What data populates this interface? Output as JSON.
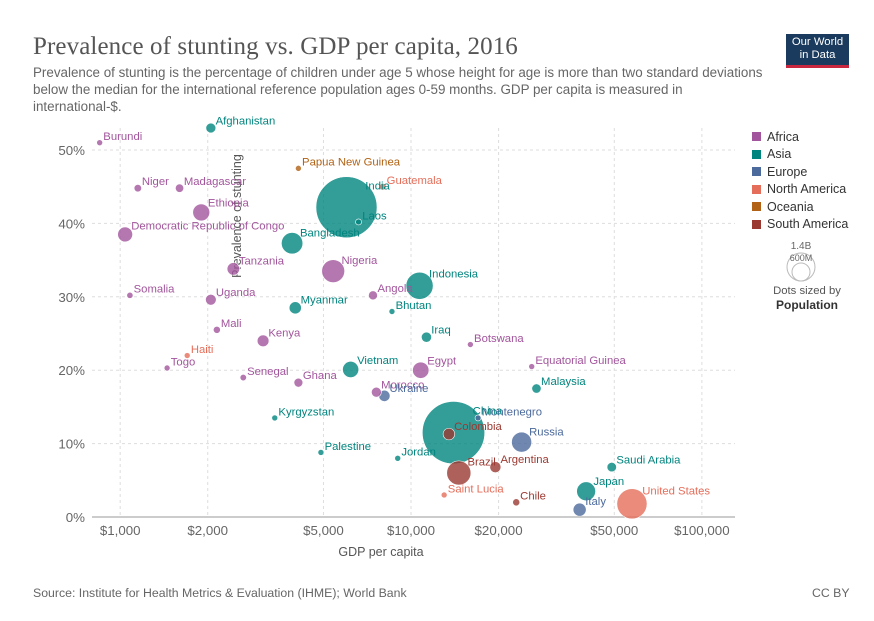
{
  "header": {
    "title": "Prevalence of stunting vs. GDP per capita, 2016",
    "subtitle": "Prevalence of stunting is the percentage of children under age 5 whose height for age is more than two standard deviations below the median for the international reference population ages 0-59 months. GDP per capita is measured in international-$.",
    "logo": "Our World in Data"
  },
  "footer": {
    "source": "Source: Institute for Health Metrics & Evaluation (IHME); World Bank",
    "license": "CC BY"
  },
  "size_legend": {
    "big_label": "1.4B",
    "small_label": "600M",
    "note": "Dots sized by",
    "note_bold": "Population"
  },
  "colors": {
    "Africa": "#a2559c",
    "Asia": "#00847e",
    "Europe": "#4c6a9c",
    "North America": "#e56e5a",
    "Oceania": "#b16214",
    "South America": "#9a3931"
  },
  "chart_data": {
    "type": "scatter",
    "title": "Prevalence of stunting vs. GDP per capita, 2016",
    "xlabel": "GDP per capita",
    "ylabel": "Prevalence of stunting",
    "x_scale": "log",
    "xlim": [
      800,
      130000
    ],
    "ylim": [
      0,
      53
    ],
    "x_ticks": [
      1000,
      2000,
      5000,
      10000,
      20000,
      50000,
      100000
    ],
    "x_tick_labels": [
      "$1,000",
      "$2,000",
      "$5,000",
      "$10,000",
      "$20,000",
      "$50,000",
      "$100,000"
    ],
    "y_ticks": [
      0,
      10,
      20,
      30,
      40,
      50
    ],
    "y_tick_labels": [
      "0%",
      "10%",
      "20%",
      "30%",
      "40%",
      "50%"
    ],
    "grid": true,
    "legend": [
      "Africa",
      "Asia",
      "Europe",
      "North America",
      "Oceania",
      "South America"
    ],
    "legend_position": "right",
    "points": [
      {
        "label": "Burundi",
        "x": 850,
        "y": 51,
        "region": "Africa",
        "pop": 10
      },
      {
        "label": "Afghanistan",
        "x": 2050,
        "y": 53,
        "region": "Asia",
        "pop": 35
      },
      {
        "label": "Papua New Guinea",
        "x": 4100,
        "y": 47.5,
        "region": "Oceania",
        "pop": 8
      },
      {
        "label": "Niger",
        "x": 1150,
        "y": 44.8,
        "region": "Africa",
        "pop": 20
      },
      {
        "label": "Madagascar",
        "x": 1600,
        "y": 44.8,
        "region": "Africa",
        "pop": 25
      },
      {
        "label": "India",
        "x": 6000,
        "y": 42.2,
        "region": "Asia",
        "pop": 1320
      },
      {
        "label": "Guatemala",
        "x": 8000,
        "y": 45,
        "region": "North America",
        "pop": 16
      },
      {
        "label": "Ethiopia",
        "x": 1900,
        "y": 41.5,
        "region": "Africa",
        "pop": 102
      },
      {
        "label": "Laos",
        "x": 6600,
        "y": 40.2,
        "region": "Asia",
        "pop": 7
      },
      {
        "label": "Democratic Republic of Congo",
        "x": 1040,
        "y": 38.5,
        "region": "Africa",
        "pop": 79
      },
      {
        "label": "Bangladesh",
        "x": 3900,
        "y": 37.3,
        "region": "Asia",
        "pop": 163
      },
      {
        "label": "Tanzania",
        "x": 2450,
        "y": 33.8,
        "region": "Africa",
        "pop": 56
      },
      {
        "label": "Nigeria",
        "x": 5400,
        "y": 33.5,
        "region": "Africa",
        "pop": 186
      },
      {
        "label": "Indonesia",
        "x": 10700,
        "y": 31.5,
        "region": "Asia",
        "pop": 261
      },
      {
        "label": "Somalia",
        "x": 1080,
        "y": 30.2,
        "region": "Africa",
        "pop": 14
      },
      {
        "label": "Uganda",
        "x": 2050,
        "y": 29.6,
        "region": "Africa",
        "pop": 41
      },
      {
        "label": "Angola",
        "x": 7400,
        "y": 30.2,
        "region": "Africa",
        "pop": 29
      },
      {
        "label": "Myanmar",
        "x": 4000,
        "y": 28.5,
        "region": "Asia",
        "pop": 53
      },
      {
        "label": "Bhutan",
        "x": 8600,
        "y": 28,
        "region": "Asia",
        "pop": 1
      },
      {
        "label": "Mali",
        "x": 2150,
        "y": 25.5,
        "region": "Africa",
        "pop": 18
      },
      {
        "label": "Kenya",
        "x": 3100,
        "y": 24,
        "region": "Africa",
        "pop": 49
      },
      {
        "label": "Iraq",
        "x": 11300,
        "y": 24.5,
        "region": "Asia",
        "pop": 37
      },
      {
        "label": "Botswana",
        "x": 16000,
        "y": 23.5,
        "region": "Africa",
        "pop": 2
      },
      {
        "label": "Haiti",
        "x": 1700,
        "y": 22,
        "region": "North America",
        "pop": 11
      },
      {
        "label": "Togo",
        "x": 1450,
        "y": 20.3,
        "region": "Africa",
        "pop": 8
      },
      {
        "label": "Vietnam",
        "x": 6200,
        "y": 20.1,
        "region": "Asia",
        "pop": 93
      },
      {
        "label": "Egypt",
        "x": 10800,
        "y": 20,
        "region": "Africa",
        "pop": 95
      },
      {
        "label": "Equatorial Guinea",
        "x": 26000,
        "y": 20.5,
        "region": "Africa",
        "pop": 1
      },
      {
        "label": "Senegal",
        "x": 2650,
        "y": 19,
        "region": "Africa",
        "pop": 15
      },
      {
        "label": "Ghana",
        "x": 4100,
        "y": 18.3,
        "region": "Africa",
        "pop": 28
      },
      {
        "label": "Morocco",
        "x": 7600,
        "y": 17,
        "region": "Africa",
        "pop": 35
      },
      {
        "label": "Ukraine",
        "x": 8100,
        "y": 16.5,
        "region": "Europe",
        "pop": 45
      },
      {
        "label": "Malaysia",
        "x": 27000,
        "y": 17.5,
        "region": "Asia",
        "pop": 31
      },
      {
        "label": "Kyrgyzstan",
        "x": 3400,
        "y": 13.5,
        "region": "Asia",
        "pop": 6
      },
      {
        "label": "Montenegro",
        "x": 17000,
        "y": 13.5,
        "region": "Europe",
        "pop": 1
      },
      {
        "label": "China",
        "x": 14000,
        "y": 11.5,
        "region": "Asia",
        "pop": 1380
      },
      {
        "label": "Colombia",
        "x": 13500,
        "y": 11.3,
        "region": "South America",
        "pop": 48
      },
      {
        "label": "Russia",
        "x": 24000,
        "y": 10.2,
        "region": "Europe",
        "pop": 144
      },
      {
        "label": "Palestine",
        "x": 4900,
        "y": 8.8,
        "region": "Asia",
        "pop": 5
      },
      {
        "label": "Jordan",
        "x": 9000,
        "y": 8,
        "region": "Asia",
        "pop": 9
      },
      {
        "label": "Brazil",
        "x": 14600,
        "y": 6,
        "region": "South America",
        "pop": 207
      },
      {
        "label": "Argentina",
        "x": 19500,
        "y": 6.8,
        "region": "South America",
        "pop": 44
      },
      {
        "label": "Saudi Arabia",
        "x": 49000,
        "y": 6.8,
        "region": "Asia",
        "pop": 32
      },
      {
        "label": "Japan",
        "x": 40000,
        "y": 3.5,
        "region": "Asia",
        "pop": 127
      },
      {
        "label": "Saint Lucia",
        "x": 13000,
        "y": 3,
        "region": "North America",
        "pop": 1
      },
      {
        "label": "Chile",
        "x": 23000,
        "y": 2,
        "region": "South America",
        "pop": 18
      },
      {
        "label": "United States",
        "x": 57500,
        "y": 1.8,
        "region": "North America",
        "pop": 323
      },
      {
        "label": "Italy",
        "x": 38000,
        "y": 1,
        "region": "Europe",
        "pop": 61
      }
    ]
  }
}
